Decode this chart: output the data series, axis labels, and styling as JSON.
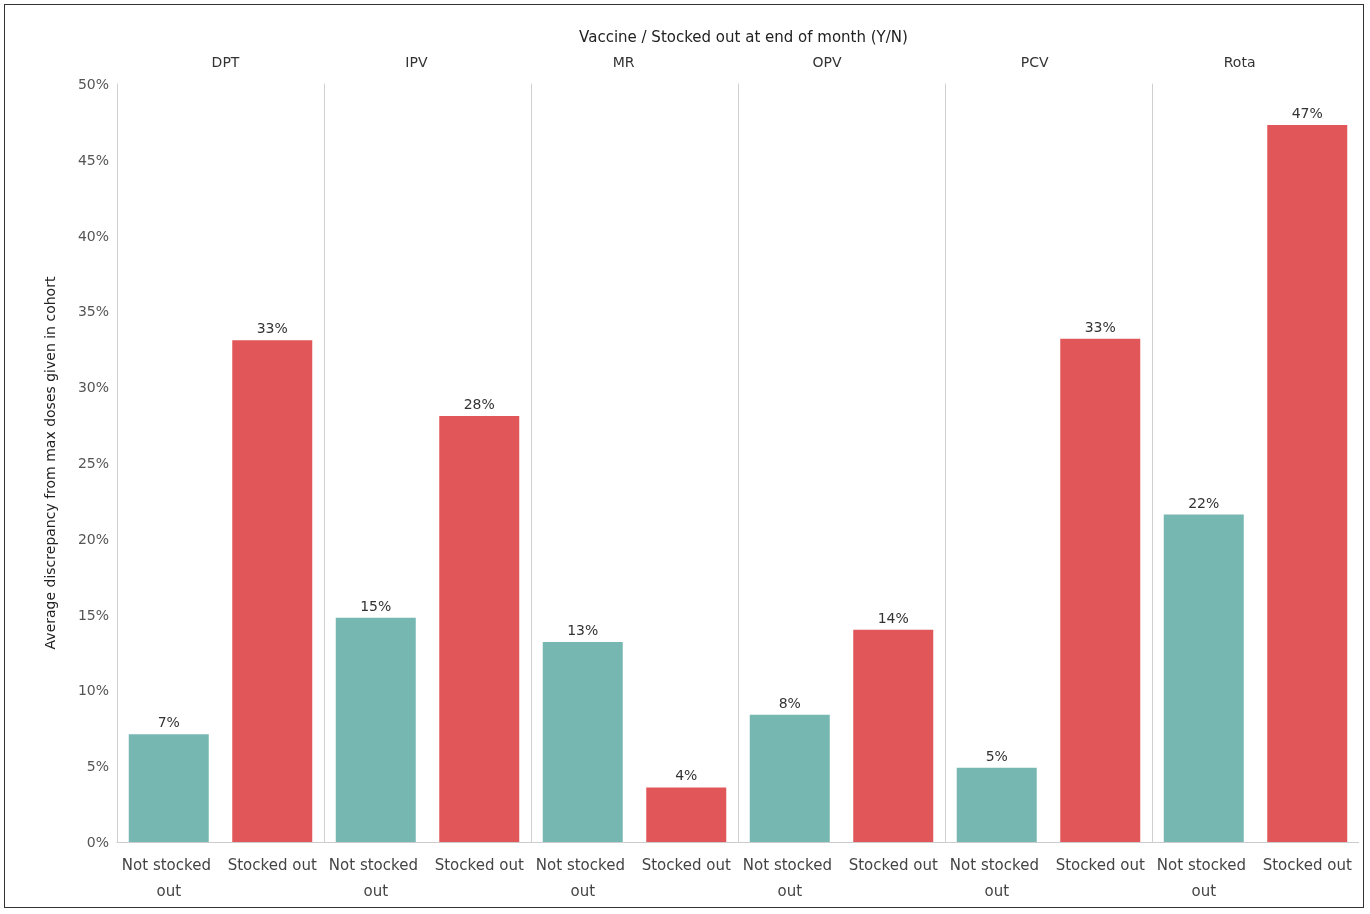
{
  "chart_data": [
    {
      "type": "bar",
      "title": "DPT",
      "annotations": [
        "Vaccine / Stocked out at end of month (Y/N)"
      ],
      "ylabel": "Average discrepancy from max doses given in cohort",
      "categories": [
        "Not stocked out",
        "Stocked out"
      ],
      "values": [
        7.1,
        33.1
      ],
      "value_labels": [
        "7%",
        "33%"
      ],
      "colors": [
        "#76b7b2",
        "#e15759"
      ],
      "ylim": [
        0,
        50
      ],
      "yticks": [
        {
          "value": 0,
          "label": "0%"
        },
        {
          "value": 5,
          "label": "5%"
        },
        {
          "value": 10,
          "label": "10%"
        },
        {
          "value": 15,
          "label": "15%"
        },
        {
          "value": 20,
          "label": "20%"
        },
        {
          "value": 25,
          "label": "25%"
        },
        {
          "value": 30,
          "label": "30%"
        },
        {
          "value": 35,
          "label": "35%"
        },
        {
          "value": 40,
          "label": "40%"
        },
        {
          "value": 45,
          "label": "45%"
        },
        {
          "value": 50,
          "label": "50%"
        }
      ],
      "grid": false
    },
    {
      "type": "bar",
      "title": "IPV",
      "categories": [
        "Not stocked out",
        "Stocked out"
      ],
      "values": [
        14.8,
        28.1
      ],
      "value_labels": [
        "15%",
        "28%"
      ],
      "colors": [
        "#76b7b2",
        "#e15759"
      ],
      "ylim": [
        0,
        50
      ],
      "yticks": [
        {
          "value": 0,
          "label": "0%"
        },
        {
          "value": 50,
          "label": "50%"
        }
      ],
      "tick_labels": "x",
      "grid": false
    },
    {
      "type": "bar",
      "title": "MR",
      "categories": [
        "Not stocked out",
        "Stocked out"
      ],
      "values": [
        13.2,
        3.6
      ],
      "value_labels": [
        "13%",
        "4%"
      ],
      "colors": [
        "#76b7b2",
        "#e15759"
      ],
      "ylim": [
        0,
        50
      ],
      "yticks": [
        {
          "value": 0,
          "label": "0%"
        },
        {
          "value": 50,
          "label": "50%"
        }
      ],
      "tick_labels": "x",
      "grid": false
    },
    {
      "type": "bar",
      "title": "OPV",
      "categories": [
        "Not stocked out",
        "Stocked out"
      ],
      "values": [
        8.4,
        14.0
      ],
      "value_labels": [
        "8%",
        "14%"
      ],
      "colors": [
        "#76b7b2",
        "#e15759"
      ],
      "ylim": [
        0,
        50
      ],
      "yticks": [
        {
          "value": 0,
          "label": "0%"
        },
        {
          "value": 50,
          "label": "50%"
        }
      ],
      "tick_labels": "x",
      "grid": false
    },
    {
      "type": "bar",
      "title": "PCV",
      "categories": [
        "Not stocked out",
        "Stocked out"
      ],
      "values": [
        4.9,
        33.2
      ],
      "value_labels": [
        "5%",
        "33%"
      ],
      "colors": [
        "#76b7b2",
        "#e15759"
      ],
      "ylim": [
        0,
        50
      ],
      "yticks": [
        {
          "value": 0,
          "label": "0%"
        },
        {
          "value": 50,
          "label": "50%"
        }
      ],
      "tick_labels": "x",
      "grid": false
    },
    {
      "type": "bar",
      "title": "Rota",
      "categories": [
        "Not stocked out",
        "Stocked out"
      ],
      "values": [
        21.6,
        47.3
      ],
      "value_labels": [
        "22%",
        "47%"
      ],
      "colors": [
        "#76b7b2",
        "#e15759"
      ],
      "ylim": [
        0,
        50
      ],
      "yticks": [
        {
          "value": 0,
          "label": "0%"
        },
        {
          "value": 50,
          "label": "50%"
        }
      ],
      "tick_labels": "x",
      "grid": false
    }
  ]
}
